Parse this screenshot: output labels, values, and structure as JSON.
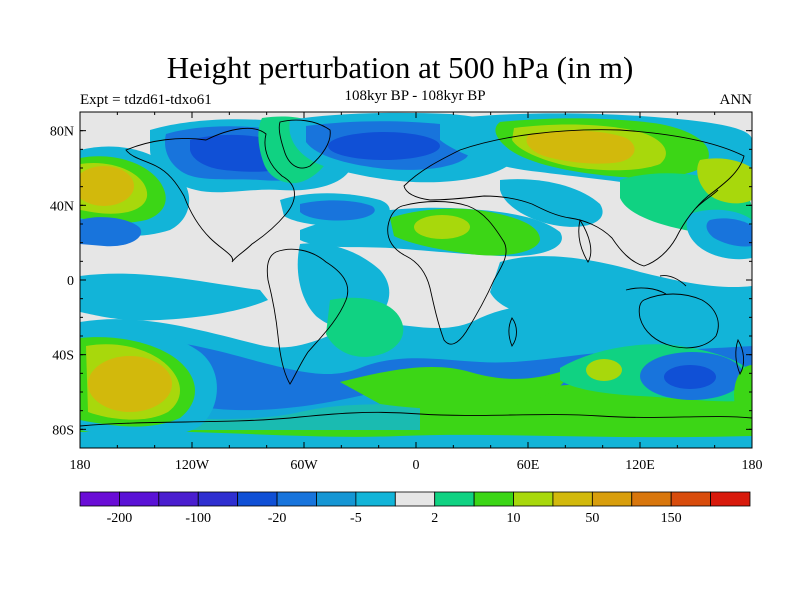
{
  "title": "Height perturbation at 500 hPa (in m)",
  "expt": "Expt = tdzd61-tdxo61",
  "subtitle": "108kyr BP - 108kyr BP",
  "season": "ANN",
  "lat_ticks": [
    "80N",
    "40N",
    "0",
    "40S",
    "80S"
  ],
  "lon_ticks": [
    "180",
    "120W",
    "60W",
    "0",
    "60E",
    "120E",
    "180"
  ],
  "colorbar": {
    "colors": [
      "#6a0dd6",
      "#5a12d6",
      "#4a1ecf",
      "#2f2fd0",
      "#1050d6",
      "#1874dc",
      "#1596d4",
      "#12b4d8",
      "#e6e6e6",
      "#10d282",
      "#3cd616",
      "#a8d80c",
      "#d2b90c",
      "#d89e0c",
      "#d8760c",
      "#d84c0c",
      "#d81a0c"
    ],
    "labels": [
      "-200",
      "-100",
      "-20",
      "-5",
      "2",
      "10",
      "50",
      "150"
    ]
  },
  "field_palette": {
    "gray": "#e6e6e6",
    "cyan": "#12b4d8",
    "lblue": "#1596d4",
    "blue": "#1874dc",
    "dblue": "#1050d6",
    "green": "#10d282",
    "lgreen": "#3cd616",
    "ygreen": "#a8d80c",
    "yellow": "#d2b90c",
    "orange": "#d89e0c"
  }
}
